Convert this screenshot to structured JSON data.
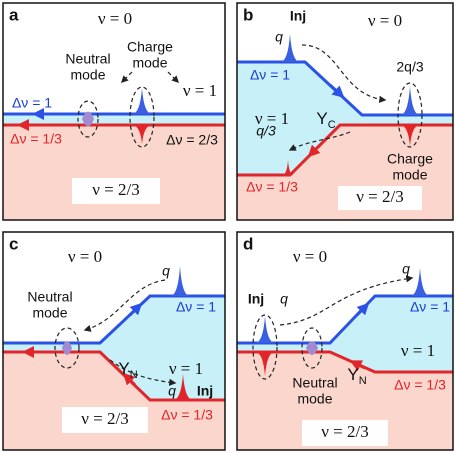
{
  "panels": [
    {
      "letter": "a",
      "nu_top": "ν = 0",
      "nu_bottom": "ν = 2/3",
      "nu_mid": "ν = 1",
      "dnu_blue": "Δν = 1",
      "dnu_red": "Δν = 1/3",
      "dnu_neutral": "Δν = 2/3",
      "neutral": [
        "Neutral",
        "mode"
      ],
      "charge": [
        "Charge",
        "mode"
      ]
    },
    {
      "letter": "b",
      "inj": "Inj",
      "q": "q",
      "nu_top": "ν = 0",
      "q_out": "2q/3",
      "dnu_blue": "Δν = 1",
      "nu_mid": "ν = 1",
      "y": "Y",
      "y_sub": "C",
      "q_back": "q/3",
      "dnu_red": "Δν = 1/3",
      "charge": [
        "Charge",
        "mode"
      ],
      "nu_bottom": "ν = 2/3"
    },
    {
      "letter": "c",
      "nu_top": "ν = 0",
      "q": "q",
      "dnu_blue": "Δν = 1",
      "neutral": [
        "Neutral",
        "mode"
      ],
      "y": "Y",
      "y_sub": "N",
      "nu_mid": "ν = 1",
      "q_in": "q",
      "inj": "Inj",
      "dnu_red": "Δν = 1/3",
      "nu_bottom": "ν = 2/3"
    },
    {
      "letter": "d",
      "nu_top": "ν = 0",
      "q": "q",
      "dnu_blue": "Δν = 1",
      "inj": "Inj",
      "q_in": "q",
      "y": "Y",
      "y_sub": "N",
      "nu_mid": "ν = 1",
      "dnu_red": "Δν = 1/3",
      "neutral": [
        "Neutral",
        "mode"
      ],
      "nu_bottom": "ν = 2/3"
    }
  ]
}
